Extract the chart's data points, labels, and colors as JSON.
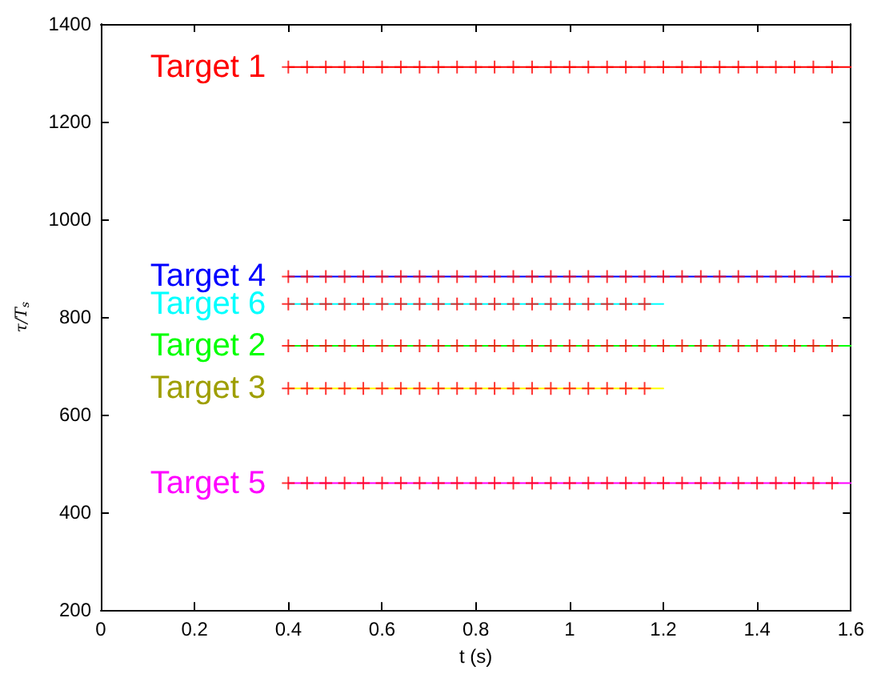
{
  "chart_data": {
    "type": "line",
    "xlabel": "t (s)",
    "ylabel": "τ/T$_{s}$",
    "xlim": [
      0,
      1.6
    ],
    "xticks": [
      0,
      0.2,
      0.4,
      0.6,
      0.8,
      1,
      1.2,
      1.4,
      1.6
    ],
    "ylim": [
      200,
      1400
    ],
    "yticks": [
      200,
      400,
      600,
      800,
      1000,
      1200,
      1400
    ],
    "grid": false,
    "legend": false,
    "series": [
      {
        "name": "Target 1",
        "marker": "none",
        "color": "#ff0000",
        "x": [
          0.4,
          1.6
        ],
        "values": [
          1312,
          1312
        ]
      },
      {
        "name": "Target 4",
        "marker": "none",
        "color": "#0000ff",
        "x": [
          0.4,
          1.6
        ],
        "values": [
          883,
          883
        ]
      },
      {
        "name": "Target 6",
        "marker": "none",
        "color": "#00ffff",
        "x": [
          0.4,
          1.2
        ],
        "values": [
          827,
          827
        ]
      },
      {
        "name": "Target 2",
        "marker": "none",
        "color": "#00ff00",
        "x": [
          0.4,
          1.6
        ],
        "values": [
          741,
          741
        ]
      },
      {
        "name": "Target 3",
        "marker": "none",
        "color": "#ffff00",
        "x": [
          0.4,
          1.2
        ],
        "values": [
          654,
          654
        ]
      },
      {
        "name": "Target 5",
        "marker": "none",
        "color": "#ff00ff",
        "x": [
          0.4,
          1.6
        ],
        "values": [
          460,
          460
        ]
      },
      {
        "type": "scatter",
        "marker": "cross",
        "color": "#ff0000",
        "x": [
          0.4,
          0.44,
          0.48,
          0.52,
          0.56,
          0.6,
          0.64,
          0.68,
          0.72,
          0.76,
          0.8,
          0.84,
          0.88,
          0.92,
          0.96,
          1,
          1.04,
          1.08,
          1.12,
          1.16,
          1.2,
          1.24,
          1.28,
          1.32,
          1.36,
          1.4,
          1.44,
          1.48,
          1.52,
          1.56
        ],
        "values": [
          1312,
          1312,
          1312,
          1312,
          1312,
          1312,
          1312,
          1312,
          1312,
          1312,
          1312,
          1312,
          1312,
          1312,
          1312,
          1312,
          1312,
          1312,
          1312,
          1312,
          1312,
          1312,
          1312,
          1312,
          1312,
          1312,
          1312,
          1312,
          1312,
          1312
        ]
      },
      {
        "type": "scatter",
        "marker": "cross",
        "color": "#ff0000",
        "x": [
          0.4,
          0.44,
          0.48,
          0.52,
          0.56,
          0.6,
          0.64,
          0.68,
          0.72,
          0.76,
          0.8,
          0.84,
          0.88,
          0.92,
          0.96,
          1,
          1.04,
          1.08,
          1.12,
          1.16,
          1.2,
          1.24,
          1.28,
          1.32,
          1.36,
          1.4,
          1.44,
          1.48,
          1.52,
          1.56
        ],
        "values": [
          883,
          883,
          883,
          883,
          883,
          883,
          883,
          883,
          883,
          883,
          883,
          883,
          883,
          883,
          883,
          883,
          883,
          883,
          883,
          883,
          883,
          883,
          883,
          883,
          883,
          883,
          883,
          883,
          883,
          883
        ]
      },
      {
        "type": "scatter",
        "marker": "cross",
        "color": "#ff0000",
        "x": [
          0.4,
          0.44,
          0.48,
          0.52,
          0.56,
          0.6,
          0.64,
          0.68,
          0.72,
          0.76,
          0.8,
          0.84,
          0.88,
          0.92,
          0.96,
          1,
          1.04,
          1.08,
          1.12,
          1.16
        ],
        "values": [
          827,
          827,
          827,
          827,
          827,
          827,
          827,
          827,
          827,
          827,
          827,
          827,
          827,
          827,
          827,
          827,
          827,
          827,
          827,
          827
        ]
      },
      {
        "type": "scatter",
        "marker": "cross",
        "color": "#ff0000",
        "x": [
          0.4,
          0.44,
          0.48,
          0.52,
          0.56,
          0.6,
          0.64,
          0.68,
          0.72,
          0.76,
          0.8,
          0.84,
          0.88,
          0.92,
          0.96,
          1,
          1.04,
          1.08,
          1.12,
          1.16,
          1.2,
          1.24,
          1.28,
          1.32,
          1.36,
          1.4,
          1.44,
          1.48,
          1.52,
          1.56
        ],
        "values": [
          741,
          741,
          741,
          741,
          741,
          741,
          741,
          741,
          741,
          741,
          741,
          741,
          741,
          741,
          741,
          741,
          741,
          741,
          741,
          741,
          741,
          741,
          741,
          741,
          741,
          741,
          741,
          741,
          741,
          741
        ]
      },
      {
        "type": "scatter",
        "marker": "cross",
        "color": "#ff0000",
        "x": [
          0.4,
          0.44,
          0.48,
          0.52,
          0.56,
          0.6,
          0.64,
          0.68,
          0.72,
          0.76,
          0.8,
          0.84,
          0.88,
          0.92,
          0.96,
          1,
          1.04,
          1.08,
          1.12,
          1.16
        ],
        "values": [
          654,
          654,
          654,
          654,
          654,
          654,
          654,
          654,
          654,
          654,
          654,
          654,
          654,
          654,
          654,
          654,
          654,
          654,
          654,
          654
        ]
      },
      {
        "type": "scatter",
        "marker": "cross",
        "color": "#ff0000",
        "x": [
          0.4,
          0.44,
          0.48,
          0.52,
          0.56,
          0.6,
          0.64,
          0.68,
          0.72,
          0.76,
          0.8,
          0.84,
          0.88,
          0.92,
          0.96,
          1,
          1.04,
          1.08,
          1.12,
          1.16,
          1.2,
          1.24,
          1.28,
          1.32,
          1.36,
          1.4,
          1.44,
          1.48,
          1.52,
          1.56
        ],
        "values": [
          460,
          460,
          460,
          460,
          460,
          460,
          460,
          460,
          460,
          460,
          460,
          460,
          460,
          460,
          460,
          460,
          460,
          460,
          460,
          460,
          460,
          460,
          460,
          460,
          460,
          460,
          460,
          460,
          460,
          460
        ]
      }
    ]
  }
}
